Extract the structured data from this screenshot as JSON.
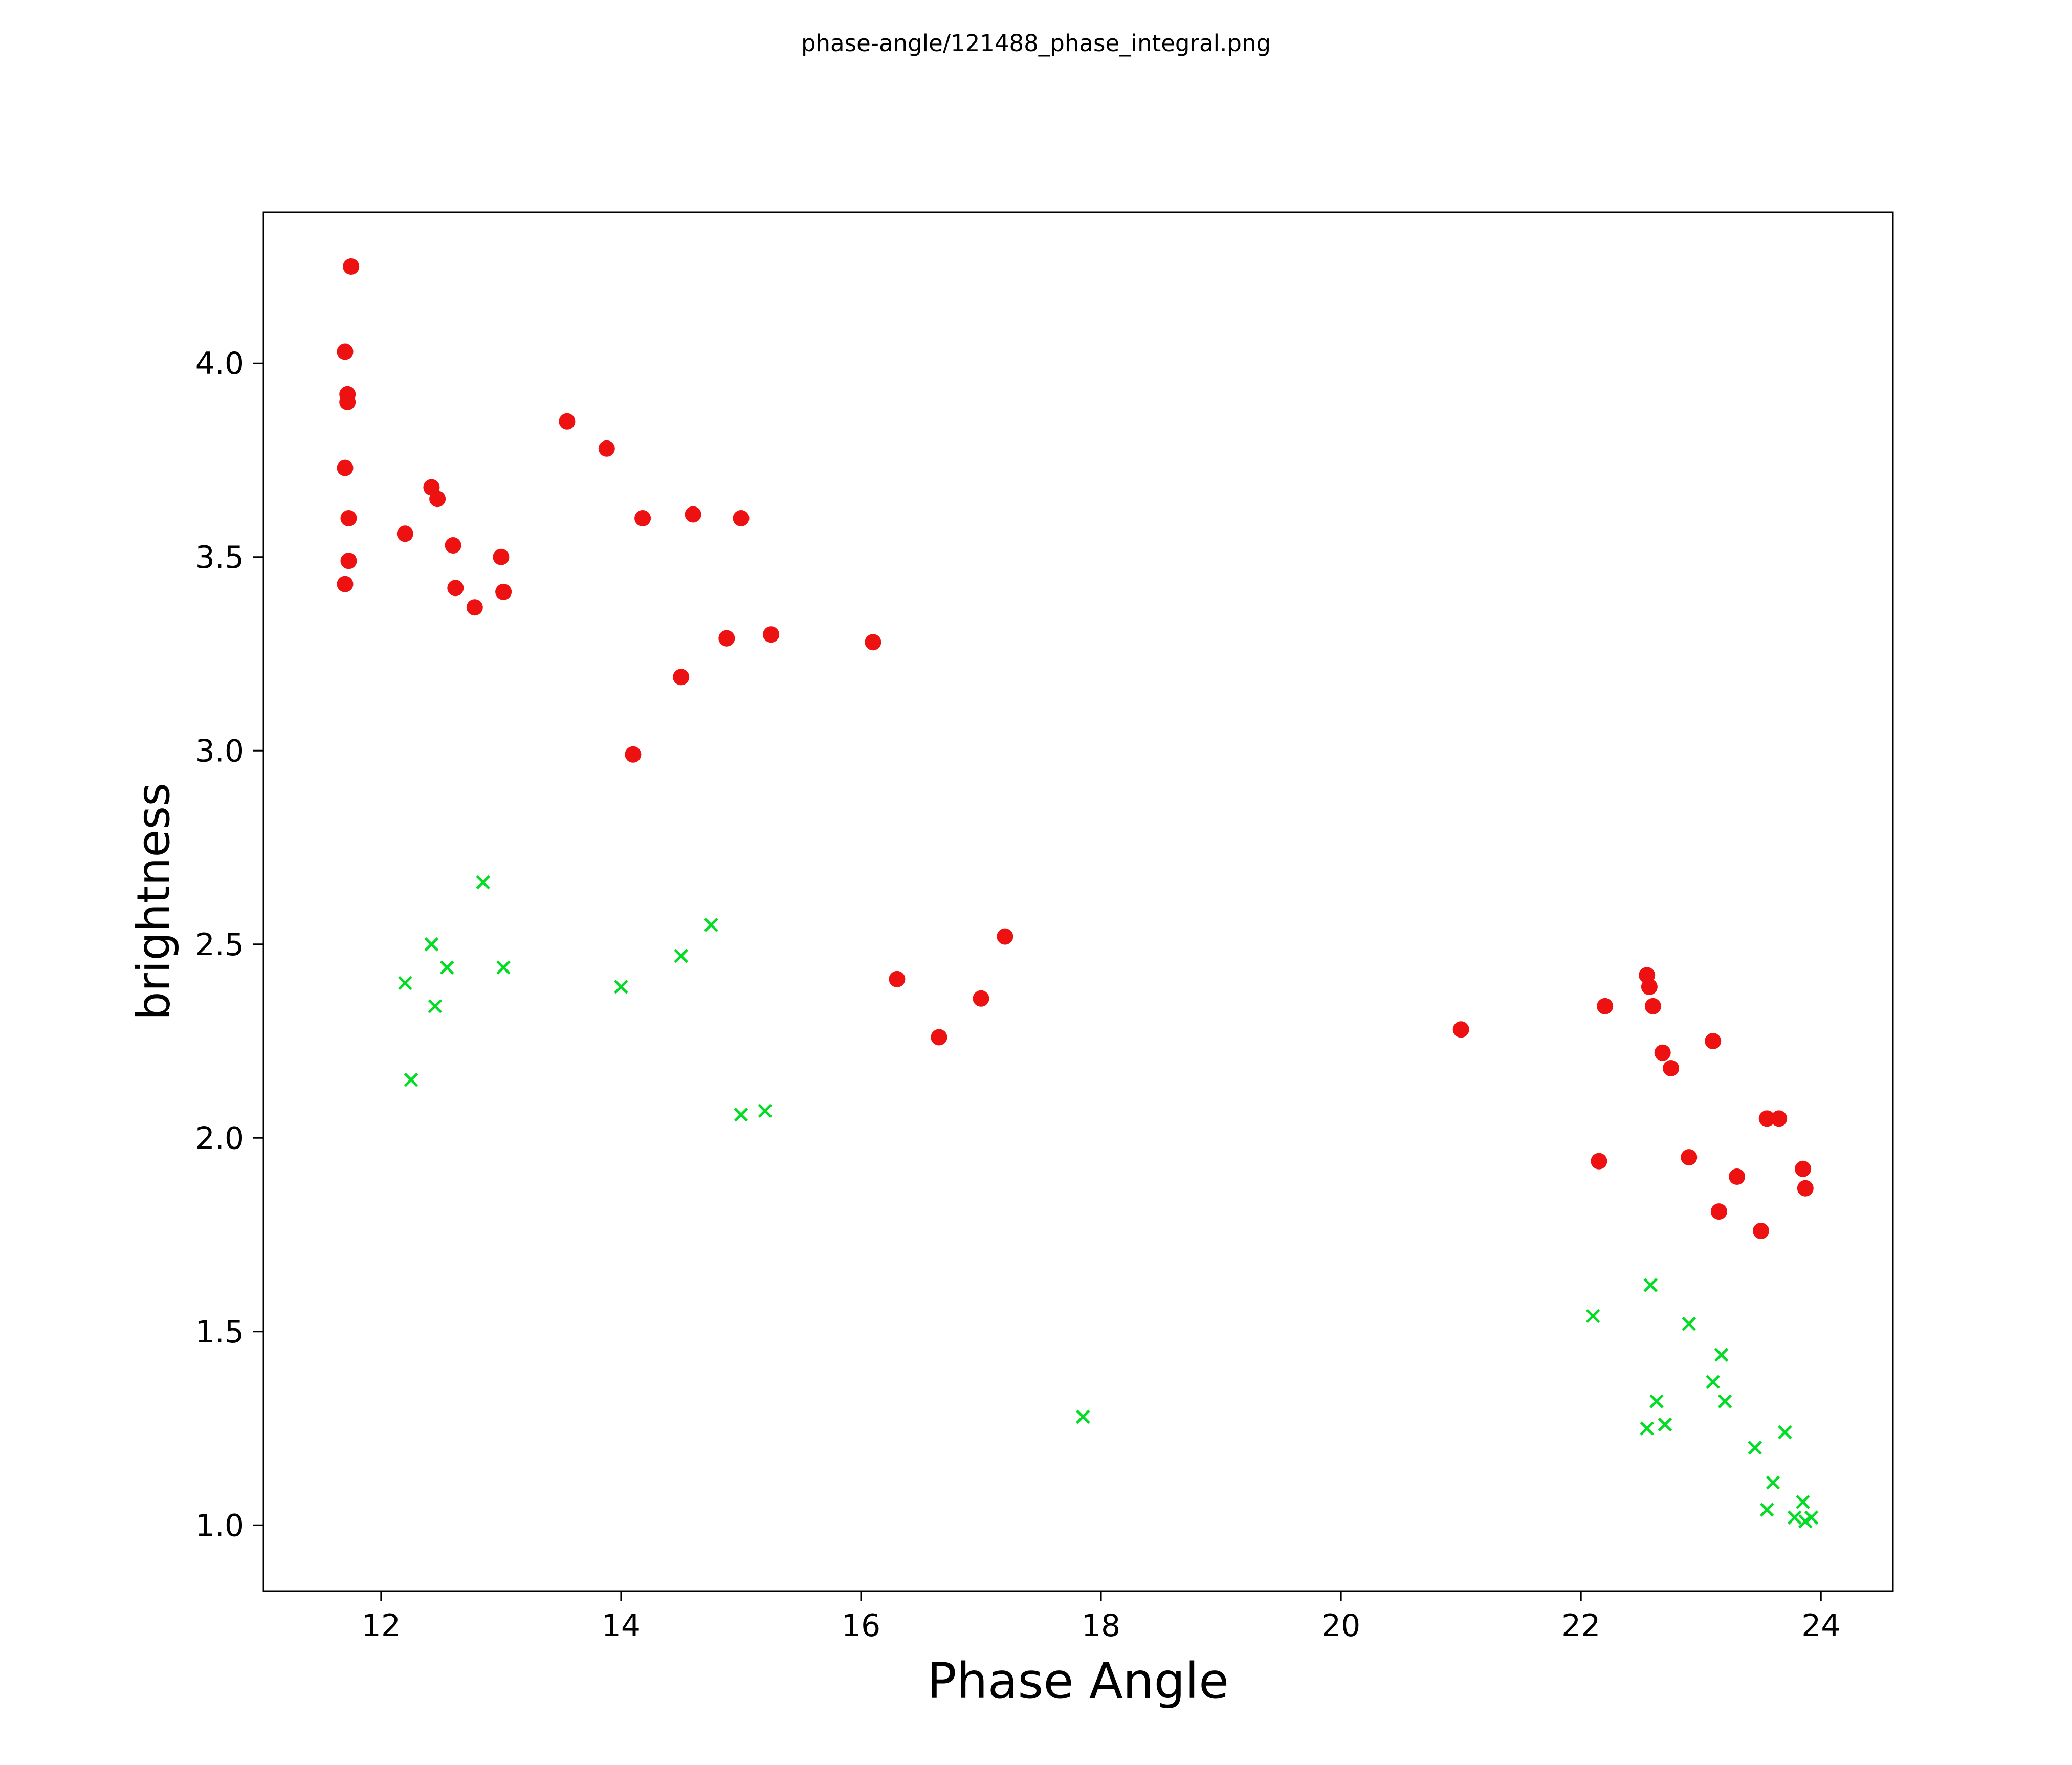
{
  "figure": {
    "title": "phase-angle/121488_phase_integral.png"
  },
  "chart_data": {
    "type": "scatter",
    "title": "phase-angle/121488_phase_integral.png",
    "xlabel": "Phase Angle",
    "ylabel": "brightness",
    "xlim": [
      11.02,
      24.6
    ],
    "ylim": [
      0.83,
      4.39
    ],
    "grid": false,
    "legend": "none",
    "x_ticks": {
      "values": [
        12,
        14,
        16,
        18,
        20,
        22,
        24
      ],
      "labels": [
        "12",
        "14",
        "16",
        "18",
        "20",
        "22",
        "24"
      ]
    },
    "y_ticks": {
      "values": [
        1.0,
        1.5,
        2.0,
        2.5,
        3.0,
        3.5,
        4.0
      ],
      "labels": [
        "1.0",
        "1.5",
        "2.0",
        "2.5",
        "3.0",
        "3.5",
        "4.0"
      ]
    },
    "series": [
      {
        "name": "red-circles",
        "marker": "circle",
        "color": "#ee1111",
        "points": [
          [
            11.75,
            4.25
          ],
          [
            11.7,
            4.03
          ],
          [
            11.72,
            3.92
          ],
          [
            11.72,
            3.9
          ],
          [
            11.7,
            3.73
          ],
          [
            11.73,
            3.6
          ],
          [
            11.73,
            3.49
          ],
          [
            11.7,
            3.43
          ],
          [
            12.2,
            3.56
          ],
          [
            12.42,
            3.68
          ],
          [
            12.47,
            3.65
          ],
          [
            12.6,
            3.53
          ],
          [
            12.62,
            3.42
          ],
          [
            12.78,
            3.37
          ],
          [
            13.0,
            3.5
          ],
          [
            13.02,
            3.41
          ],
          [
            13.55,
            3.85
          ],
          [
            13.88,
            3.78
          ],
          [
            14.18,
            3.6
          ],
          [
            14.6,
            3.61
          ],
          [
            15.0,
            3.6
          ],
          [
            14.88,
            3.29
          ],
          [
            15.25,
            3.3
          ],
          [
            14.5,
            3.19
          ],
          [
            14.1,
            2.99
          ],
          [
            16.1,
            3.28
          ],
          [
            16.3,
            2.41
          ],
          [
            16.65,
            2.26
          ],
          [
            17.0,
            2.36
          ],
          [
            17.2,
            2.52
          ],
          [
            21.0,
            2.28
          ],
          [
            22.15,
            1.94
          ],
          [
            22.2,
            2.34
          ],
          [
            22.55,
            2.42
          ],
          [
            22.57,
            2.39
          ],
          [
            22.6,
            2.34
          ],
          [
            22.68,
            2.22
          ],
          [
            22.75,
            2.18
          ],
          [
            22.9,
            1.95
          ],
          [
            23.1,
            2.25
          ],
          [
            23.15,
            1.81
          ],
          [
            23.3,
            1.9
          ],
          [
            23.5,
            1.76
          ],
          [
            23.55,
            2.05
          ],
          [
            23.65,
            2.05
          ],
          [
            23.85,
            1.92
          ],
          [
            23.87,
            1.87
          ]
        ]
      },
      {
        "name": "green-crosses",
        "marker": "x",
        "color": "#00dd22",
        "points": [
          [
            12.2,
            2.4
          ],
          [
            12.25,
            2.15
          ],
          [
            12.42,
            2.5
          ],
          [
            12.45,
            2.34
          ],
          [
            12.55,
            2.44
          ],
          [
            12.85,
            2.66
          ],
          [
            13.02,
            2.44
          ],
          [
            14.0,
            2.39
          ],
          [
            14.5,
            2.47
          ],
          [
            14.75,
            2.55
          ],
          [
            15.0,
            2.06
          ],
          [
            15.2,
            2.07
          ],
          [
            17.85,
            1.28
          ],
          [
            22.1,
            1.54
          ],
          [
            22.58,
            1.62
          ],
          [
            22.55,
            1.25
          ],
          [
            22.63,
            1.32
          ],
          [
            22.7,
            1.26
          ],
          [
            22.9,
            1.52
          ],
          [
            23.1,
            1.37
          ],
          [
            23.17,
            1.44
          ],
          [
            23.2,
            1.32
          ],
          [
            23.45,
            1.2
          ],
          [
            23.6,
            1.11
          ],
          [
            23.55,
            1.04
          ],
          [
            23.7,
            1.24
          ],
          [
            23.78,
            1.02
          ],
          [
            23.85,
            1.06
          ],
          [
            23.87,
            1.01
          ],
          [
            23.92,
            1.02
          ]
        ]
      }
    ]
  }
}
